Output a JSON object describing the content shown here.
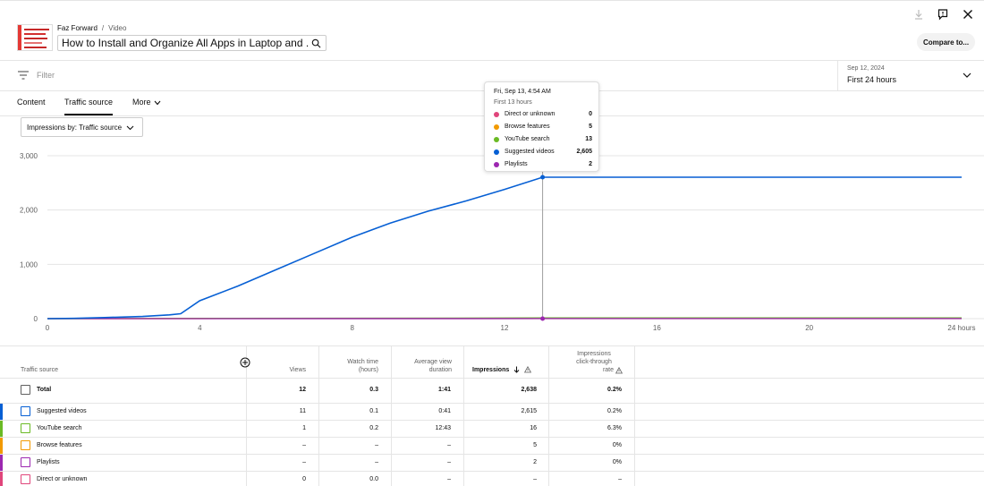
{
  "header": {
    "channel": "Faz Forward",
    "separator": "/",
    "section": "Video",
    "title": "How to Install and Organize All Apps in Laptop and ...",
    "compare_label": "Compare to..."
  },
  "filter": {
    "placeholder": "Filter"
  },
  "date_range": {
    "label": "Sep 12, 2024",
    "value": "First 24 hours"
  },
  "tabs": [
    {
      "label": "Content",
      "active": false
    },
    {
      "label": "Traffic source",
      "active": true
    },
    {
      "label": "More",
      "active": false
    }
  ],
  "metric_select": {
    "value": "Impressions by: Traffic source"
  },
  "tooltip": {
    "title": "Fri, Sep 13, 4:54 AM",
    "subtitle": "First 13 hours",
    "rows": [
      {
        "label": "Direct or unknown",
        "value": "0",
        "color": "#e0457b"
      },
      {
        "label": "Browse features",
        "value": "5",
        "color": "#f29a00"
      },
      {
        "label": "YouTube search",
        "value": "13",
        "color": "#6aba24"
      },
      {
        "label": "Suggested videos",
        "value": "2,605",
        "color": "#065fd4"
      },
      {
        "label": "Playlists",
        "value": "2",
        "color": "#9c27b0"
      }
    ]
  },
  "chart_data": {
    "type": "line",
    "x_unit": "hours",
    "xlim": [
      0,
      24
    ],
    "ylim": [
      0,
      3000
    ],
    "x_ticks": [
      "0",
      "4",
      "8",
      "12",
      "16",
      "20",
      "24 hours"
    ],
    "y_ticks": [
      "0",
      "1,000",
      "2,000",
      "3,000"
    ],
    "grid": true,
    "cursor_x": 13,
    "series": [
      {
        "name": "Suggested videos",
        "color": "#065fd4",
        "x": [
          0,
          0.7,
          1.5,
          2.5,
          3.2,
          3.5,
          4,
          5,
          6,
          7,
          8,
          9,
          10,
          11,
          12,
          13,
          24
        ],
        "y": [
          0,
          5,
          20,
          40,
          70,
          90,
          330,
          600,
          900,
          1200,
          1500,
          1760,
          1980,
          2170,
          2380,
          2605,
          2605
        ]
      },
      {
        "name": "Direct or unknown",
        "color": "#e0457b",
        "x": [
          0,
          24
        ],
        "y": [
          0,
          0
        ]
      },
      {
        "name": "Browse features",
        "color": "#f29a00",
        "x": [
          0,
          14.5,
          24
        ],
        "y": [
          0,
          5,
          5
        ]
      },
      {
        "name": "YouTube search",
        "color": "#6aba24",
        "x": [
          0,
          13,
          24
        ],
        "y": [
          0,
          13,
          13
        ]
      },
      {
        "name": "Playlists",
        "color": "#9c27b0",
        "x": [
          0,
          13,
          24
        ],
        "y": [
          0,
          2,
          2
        ]
      }
    ]
  },
  "table": {
    "headers": {
      "traffic_source": "Traffic source",
      "views": "Views",
      "watch_time": [
        "Watch time",
        "(hours)"
      ],
      "avg_view_duration": [
        "Average view",
        "duration"
      ],
      "impressions": "Impressions",
      "ctr": [
        "Impressions",
        "click-through",
        "rate"
      ]
    },
    "total": {
      "name": "Total",
      "views": "12",
      "watch_time": "0.3",
      "avg": "1:41",
      "impressions": "2,638",
      "ctr": "0.2%"
    },
    "rows": [
      {
        "name": "Suggested videos",
        "color": "#065fd4",
        "views": "11",
        "watch_time": "0.1",
        "avg": "0:41",
        "impressions": "2,615",
        "ctr": "0.2%"
      },
      {
        "name": "YouTube search",
        "color": "#6aba24",
        "views": "1",
        "watch_time": "0.2",
        "avg": "12:43",
        "impressions": "16",
        "ctr": "6.3%"
      },
      {
        "name": "Browse features",
        "color": "#f29a00",
        "views": "–",
        "watch_time": "–",
        "avg": "–",
        "impressions": "5",
        "ctr": "0%"
      },
      {
        "name": "Playlists",
        "color": "#9c27b0",
        "views": "–",
        "watch_time": "–",
        "avg": "–",
        "impressions": "2",
        "ctr": "0%"
      },
      {
        "name": "Direct or unknown",
        "color": "#e0457b",
        "views": "0",
        "watch_time": "0.0",
        "avg": "–",
        "impressions": "–",
        "ctr": "–"
      }
    ]
  }
}
